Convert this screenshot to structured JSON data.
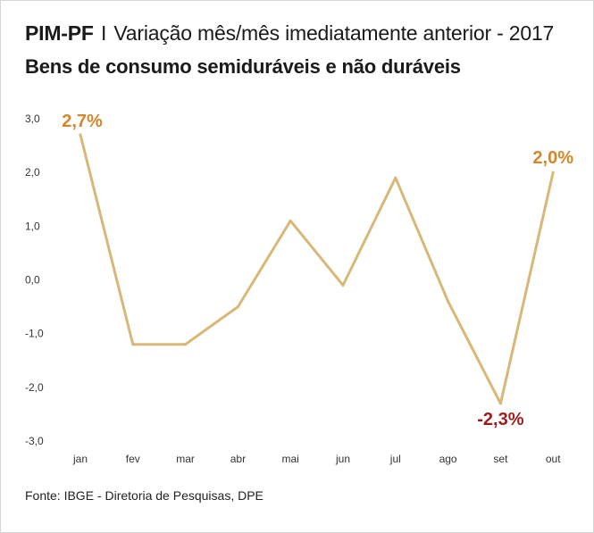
{
  "header": {
    "title_bold": "PIM-PF",
    "title_sep": "I",
    "title_rest": "Variação mês/mês imediatamente anterior - 2017",
    "subtitle": "Bens de consumo semiduráveis e não duráveis"
  },
  "footer": {
    "source": "Fonte: IBGE - Diretoria de Pesquisas, DPE"
  },
  "colors": {
    "line": "#d8b878",
    "label_positive": "#d4862a",
    "label_negative": "#9b1c1c"
  },
  "chart_data": {
    "type": "line",
    "title": "Bens de consumo semiduráveis e não duráveis",
    "categories": [
      "jan",
      "fev",
      "mar",
      "abr",
      "mai",
      "jun",
      "jul",
      "ago",
      "set",
      "out"
    ],
    "series": [
      {
        "values": [
          2.7,
          -1.2,
          -1.2,
          -0.5,
          1.1,
          -0.1,
          1.9,
          -0.4,
          -2.3,
          2.0
        ]
      }
    ],
    "y_ticks": [
      "3,0",
      "2,0",
      "1,0",
      "0,0",
      "-1,0",
      "-2,0",
      "-3,0"
    ],
    "ylim": [
      -3.0,
      3.0
    ],
    "grid": false,
    "data_labels": [
      {
        "index": 0,
        "text": "2,7%",
        "kind": "positive"
      },
      {
        "index": 8,
        "text": "-2,3%",
        "kind": "negative"
      },
      {
        "index": 9,
        "text": "2,0%",
        "kind": "positive"
      }
    ]
  }
}
